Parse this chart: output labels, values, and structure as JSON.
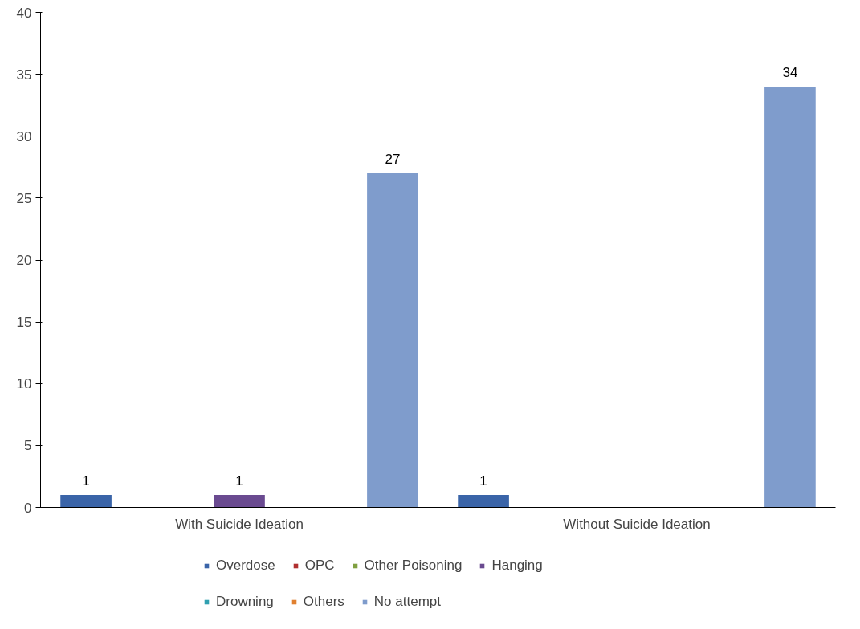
{
  "chart_data": {
    "type": "bar",
    "categories": [
      "With Suicide Ideation",
      "Without Suicide Ideation"
    ],
    "series": [
      {
        "name": "Overdose",
        "color": "#3a64a8",
        "values": [
          1,
          1
        ],
        "value_labels": [
          "1",
          "1"
        ]
      },
      {
        "name": "OPC",
        "color": "#b03030",
        "values": [
          0,
          0
        ],
        "value_labels": [
          null,
          null
        ]
      },
      {
        "name": "Other Poisoning",
        "color": "#80a040",
        "values": [
          0,
          0
        ],
        "value_labels": [
          null,
          null
        ]
      },
      {
        "name": "Hanging",
        "color": "#6a4a90",
        "values": [
          1,
          0
        ],
        "value_labels": [
          "1",
          null
        ]
      },
      {
        "name": "Drowning",
        "color": "#30a0b0",
        "values": [
          0,
          0
        ],
        "value_labels": [
          null,
          null
        ]
      },
      {
        "name": "Others",
        "color": "#e08030",
        "values": [
          0,
          0
        ],
        "value_labels": [
          null,
          null
        ]
      },
      {
        "name": "No attempt",
        "color": "#7f9ccc",
        "values": [
          27,
          34
        ],
        "value_labels": [
          "27",
          "34"
        ]
      }
    ],
    "ylim": [
      0,
      40
    ],
    "yticks": [
      0,
      5,
      10,
      15,
      20,
      25,
      30,
      35,
      40
    ],
    "grid": false,
    "legend": "bottom"
  }
}
